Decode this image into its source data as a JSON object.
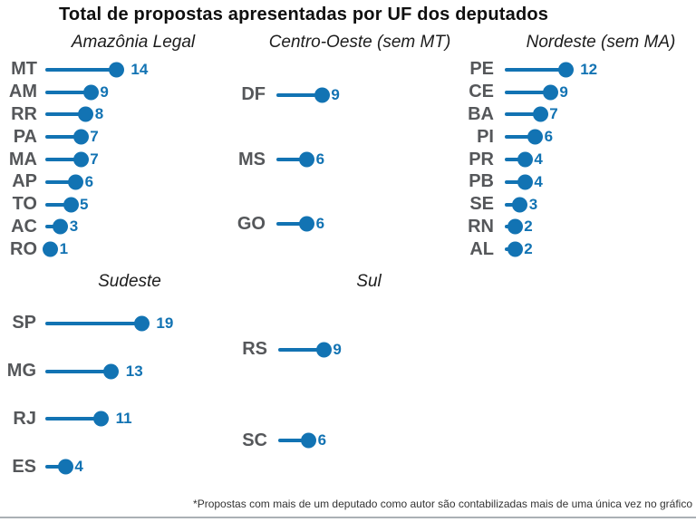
{
  "chart_data": {
    "type": "lollipop",
    "title": "Total de propostas apresentadas por UF dos deputados",
    "footnote": "*Propostas com mais de um deputado como autor são contabilizadas mais de uma única vez no gráfico",
    "layout_hint": "small multiples, 2 rows (3 + 2 facets), horizontal lollipops, free y scales, shared x scale starting at 0",
    "colors": {
      "accent": "#1273b3",
      "category_label": "#55575a",
      "title": "#0f0f0f",
      "bottom_rule": "#aab0b5"
    },
    "x_range": [
      0,
      19
    ],
    "panels": [
      {
        "id": "amazonia-legal",
        "title": "Amazônia Legal",
        "categories": [
          "MT",
          "AM",
          "RR",
          "PA",
          "MA",
          "AP",
          "TO",
          "AC",
          "RO"
        ],
        "values": [
          14,
          9,
          8,
          7,
          7,
          6,
          5,
          3,
          1
        ]
      },
      {
        "id": "centro-oeste",
        "title": "Centro-Oeste (sem MT)",
        "categories": [
          "DF",
          "MS",
          "GO"
        ],
        "values": [
          9,
          6,
          6
        ]
      },
      {
        "id": "nordeste",
        "title": "Nordeste (sem MA)",
        "categories": [
          "PE",
          "CE",
          "BA",
          "PI",
          "PR",
          "PB",
          "SE",
          "RN",
          "AL"
        ],
        "values": [
          12,
          9,
          7,
          6,
          4,
          4,
          3,
          2,
          2
        ]
      },
      {
        "id": "sudeste",
        "title": "Sudeste",
        "categories": [
          "SP",
          "MG",
          "RJ",
          "ES"
        ],
        "values": [
          19,
          13,
          11,
          4
        ]
      },
      {
        "id": "sul",
        "title": "Sul",
        "categories": [
          "RS",
          "SC"
        ],
        "values": [
          9,
          6
        ]
      }
    ]
  }
}
